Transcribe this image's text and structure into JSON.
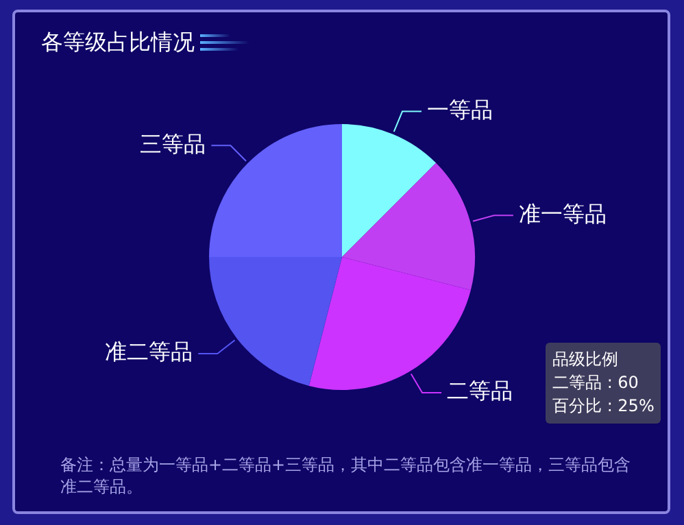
{
  "chart_data": {
    "type": "pie",
    "title": "各等级占比情况",
    "categories": [
      "一等品",
      "准一等品",
      "二等品",
      "准二等品",
      "三等品"
    ],
    "values": [
      12.5,
      16.5,
      25,
      21,
      25
    ],
    "colors": [
      "#7ffcff",
      "#c13ff2",
      "#cc33ff",
      "#5454f0",
      "#6360fb"
    ],
    "legend": false,
    "annotations": [
      "品级比例",
      "二等品 : 60",
      "百分比 : 25%",
      "备注：总量为一等品+二等品+三等品，其中二等品包含准一等品，三等品包含准二等品。"
    ]
  }
}
